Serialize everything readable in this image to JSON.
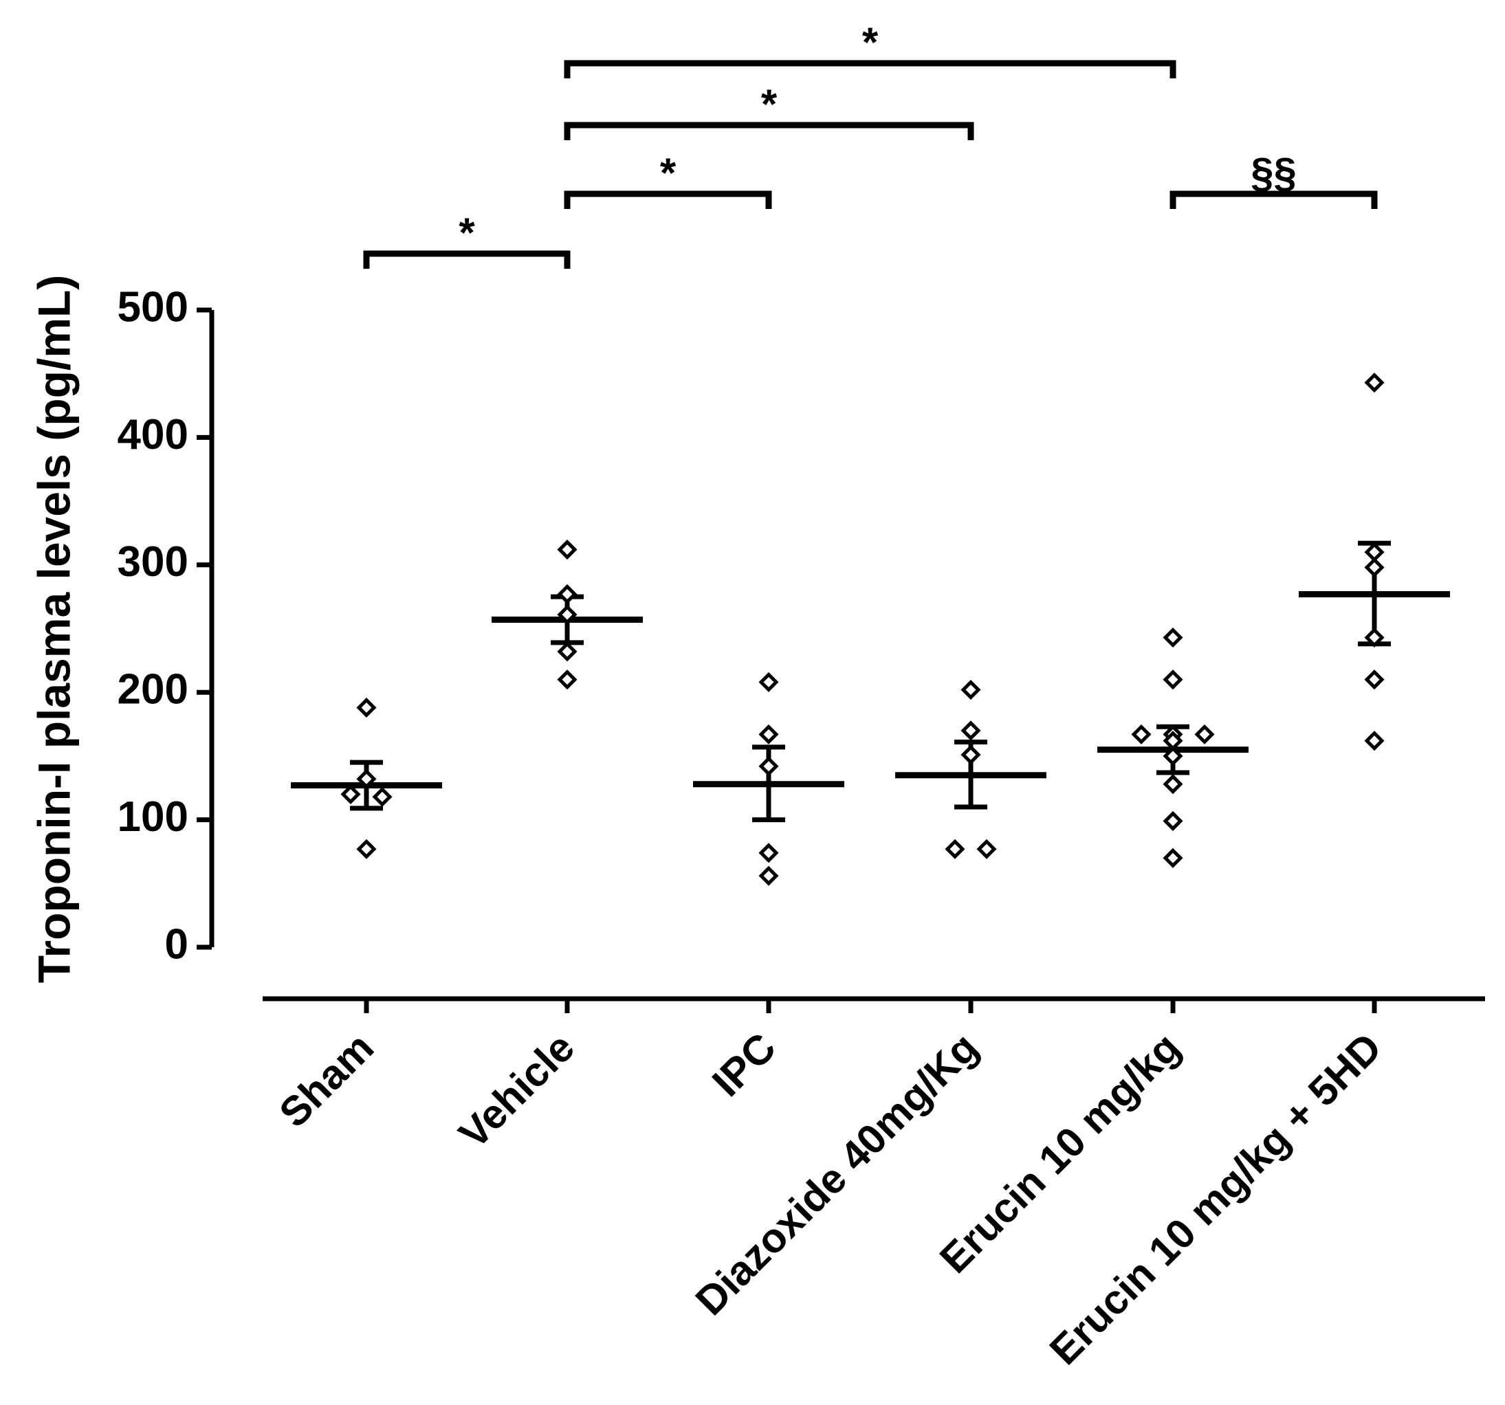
{
  "chart_data": {
    "type": "scatter",
    "title": "",
    "xlabel": "",
    "ylabel": "Troponin-I plasma levels (pg/mL)",
    "ylim": [
      0,
      500
    ],
    "yticks": [
      0,
      100,
      200,
      300,
      400,
      500
    ],
    "ytick_labels": [
      "0",
      "100",
      "200",
      "300",
      "400",
      "500"
    ],
    "grid": false,
    "legend": "none",
    "colors": {
      "ink": "#000000",
      "marker_fill": "#ffffff"
    },
    "categories": [
      "Sham",
      "Vehicle",
      "IPC",
      "Diazoxide 40mg/Kg",
      "Erucin 10 mg/kg",
      "Erucin 10 mg/kg + 5HD"
    ],
    "groups": [
      {
        "name": "Sham",
        "points": [
          188,
          132,
          120,
          118,
          77
        ],
        "mean": 127,
        "sem_lo": 109,
        "sem_hi": 145
      },
      {
        "name": "Vehicle",
        "points": [
          312,
          277,
          261,
          232,
          210
        ],
        "mean": 257,
        "sem_lo": 239,
        "sem_hi": 275
      },
      {
        "name": "IPC",
        "points": [
          208,
          167,
          142,
          74,
          56
        ],
        "mean": 128,
        "sem_lo": 100,
        "sem_hi": 157
      },
      {
        "name": "Diazoxide 40mg/Kg",
        "points": [
          202,
          170,
          151,
          77,
          77
        ],
        "mean": 135,
        "sem_lo": 110,
        "sem_hi": 161
      },
      {
        "name": "Erucin 10 mg/kg",
        "points": [
          243,
          210,
          167,
          167,
          167,
          162,
          150,
          128,
          99,
          70
        ],
        "mean": 155,
        "sem_lo": 137,
        "sem_hi": 173
      },
      {
        "name": "Erucin 10 mg/kg + 5HD",
        "points": [
          443,
          310,
          298,
          243,
          210,
          162
        ],
        "mean": 277,
        "sem_lo": 238,
        "sem_hi": 317
      }
    ],
    "annotations": [
      {
        "from": 0,
        "to": 1,
        "label": "*",
        "level": 0
      },
      {
        "from": 1,
        "to": 2,
        "label": "*",
        "level": 1
      },
      {
        "from": 1,
        "to": 3,
        "label": "*",
        "level": 2
      },
      {
        "from": 1,
        "to": 4,
        "label": "*",
        "level": 3
      },
      {
        "from": 4,
        "to": 5,
        "label": "§§",
        "level": 1
      }
    ]
  }
}
